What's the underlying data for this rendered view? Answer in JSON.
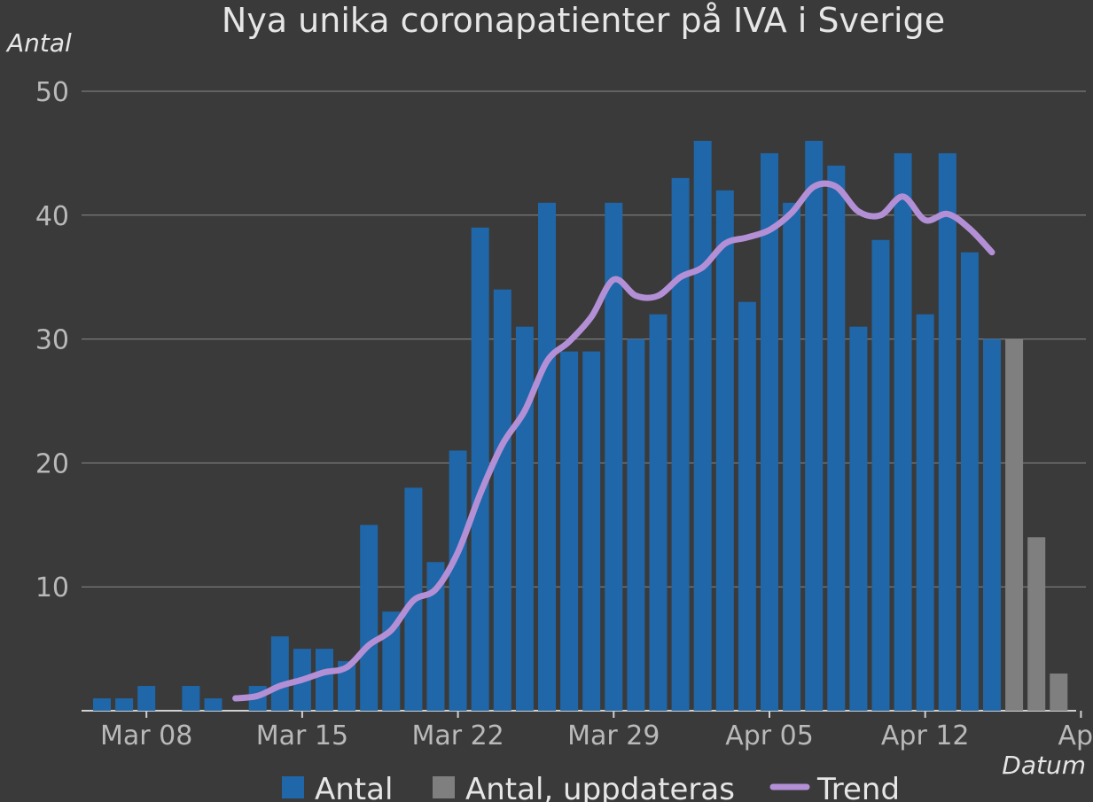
{
  "chart_data": {
    "type": "bar",
    "title": "Nya unika coronapatienter på IVA i Sverige",
    "ylabel": "Antal",
    "xlabel": "Datum",
    "ylim": [
      0,
      50
    ],
    "yticks": [
      10,
      20,
      30,
      40,
      50
    ],
    "grid": true,
    "legend_position": "bottom",
    "x": [
      "2020-03-06",
      "2020-03-07",
      "2020-03-08",
      "2020-03-09",
      "2020-03-10",
      "2020-03-11",
      "2020-03-12",
      "2020-03-13",
      "2020-03-14",
      "2020-03-15",
      "2020-03-16",
      "2020-03-17",
      "2020-03-18",
      "2020-03-19",
      "2020-03-20",
      "2020-03-21",
      "2020-03-22",
      "2020-03-23",
      "2020-03-24",
      "2020-03-25",
      "2020-03-26",
      "2020-03-27",
      "2020-03-28",
      "2020-03-29",
      "2020-03-30",
      "2020-03-31",
      "2020-04-01",
      "2020-04-02",
      "2020-04-03",
      "2020-04-04",
      "2020-04-05",
      "2020-04-06",
      "2020-04-07",
      "2020-04-08",
      "2020-04-09",
      "2020-04-10",
      "2020-04-11",
      "2020-04-12",
      "2020-04-13",
      "2020-04-14",
      "2020-04-15",
      "2020-04-16",
      "2020-04-17",
      "2020-04-18",
      "2020-04-19"
    ],
    "xticks": [
      {
        "date": "2020-03-08",
        "label": "Mar 08"
      },
      {
        "date": "2020-03-15",
        "label": "Mar 15"
      },
      {
        "date": "2020-03-22",
        "label": "Mar 22"
      },
      {
        "date": "2020-03-29",
        "label": "Mar 29"
      },
      {
        "date": "2020-04-05",
        "label": "Apr 05"
      },
      {
        "date": "2020-04-12",
        "label": "Apr 12"
      },
      {
        "date": "2020-04-19",
        "label": "Apr"
      }
    ],
    "series": [
      {
        "name": "Antal",
        "color": "#1f67a8",
        "type": "bar",
        "values": [
          1,
          1,
          2,
          0,
          2,
          1,
          0,
          2,
          6,
          5,
          5,
          4,
          15,
          8,
          18,
          12,
          21,
          39,
          34,
          31,
          41,
          29,
          29,
          41,
          30,
          32,
          43,
          46,
          42,
          33,
          45,
          41,
          46,
          44,
          31,
          38,
          45,
          32,
          45,
          37,
          30,
          null,
          null,
          null,
          null
        ]
      },
      {
        "name": "Antal, uppdateras",
        "color": "#7f7f7f",
        "type": "bar",
        "values": [
          null,
          null,
          null,
          null,
          null,
          null,
          null,
          null,
          null,
          null,
          null,
          null,
          null,
          null,
          null,
          null,
          null,
          null,
          null,
          null,
          null,
          null,
          null,
          null,
          null,
          null,
          null,
          null,
          null,
          null,
          null,
          null,
          null,
          null,
          null,
          null,
          null,
          null,
          null,
          null,
          null,
          30,
          14,
          3,
          null
        ]
      },
      {
        "name": "Trend",
        "color": "#b38fd6",
        "type": "line",
        "values": [
          null,
          null,
          null,
          null,
          null,
          null,
          1,
          1.2,
          2,
          2.5,
          3.1,
          3.5,
          5.3,
          6.5,
          8.9,
          9.8,
          12.8,
          17.5,
          21.5,
          24.2,
          28.2,
          29.8,
          31.8,
          34.8,
          33.5,
          33.5,
          35,
          35.8,
          37.7,
          38.2,
          38.8,
          40.2,
          42.3,
          42.3,
          40.3,
          40,
          41.5,
          39.6,
          40.1,
          38.9,
          37,
          null,
          null,
          null,
          null
        ]
      }
    ]
  }
}
